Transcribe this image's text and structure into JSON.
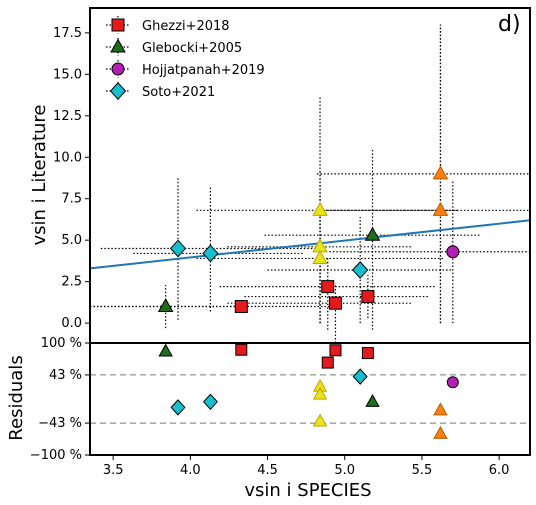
{
  "chart_data": [
    {
      "type": "scatter",
      "panel_label": "d)",
      "xlabel": "vsin i SPECIES",
      "ylabel": "vsin i Literature",
      "xlim": [
        3.35,
        6.2
      ],
      "ylim": [
        -1.2,
        19.0
      ],
      "x_ticks": [
        "3.5",
        "4.0",
        "4.5",
        "5.0",
        "5.5",
        "6.0"
      ],
      "y_ticks": [
        "0.0",
        "2.5",
        "5.0",
        "7.5",
        "10.0",
        "12.5",
        "15.0",
        "17.5"
      ],
      "legend_position": "top-left",
      "series": [
        {
          "name": "Ghezzi+2018",
          "marker": "square",
          "color": "#e41a1c",
          "points": [
            {
              "x": 4.33,
              "y": 1.0,
              "xerr": [
                1.0,
                0.6
              ],
              "yerr": [
                0.0,
                0.0
              ]
            },
            {
              "x": 4.89,
              "y": 2.2,
              "xerr": [
                0.7,
                0.7
              ],
              "yerr": [
                2.6,
                1.7
              ]
            },
            {
              "x": 4.94,
              "y": 1.2,
              "xerr": [
                0.7,
                0.5
              ],
              "yerr": [
                2.8,
                1.2
              ]
            },
            {
              "x": 5.15,
              "y": 1.6,
              "xerr": [
                0.8,
                0.4
              ],
              "yerr": [
                1.3,
                1.3
              ]
            }
          ]
        },
        {
          "name": "Glebocki+2005",
          "marker": "triangle",
          "color": "#1b6e1b",
          "points": [
            {
              "x": 3.84,
              "y": 1.0,
              "xerr": [
                0.6,
                0.5
              ],
              "yerr": [
                1.3,
                1.3
              ]
            },
            {
              "x": 5.18,
              "y": 5.3,
              "xerr": [
                0.7,
                0.7
              ],
              "yerr": [
                5.7,
                5.2
              ]
            }
          ]
        },
        {
          "name": "Hojjatpanah+2019",
          "marker": "circle",
          "color": "#b21fb2",
          "points": [
            {
              "x": 5.7,
              "y": 4.3,
              "xerr": [
                0.8,
                0.7
              ],
              "yerr": [
                4.3,
                4.3
              ]
            }
          ]
        },
        {
          "name": "Soto+2021",
          "marker": "diamond",
          "color": "#17becf",
          "points": [
            {
              "x": 3.92,
              "y": 4.5,
              "xerr": [
                0.5,
                0.9
              ],
              "yerr": [
                4.3,
                4.3
              ]
            },
            {
              "x": 4.13,
              "y": 4.2,
              "xerr": [
                0.5,
                0.6
              ],
              "yerr": [
                3.5,
                4.1
              ]
            },
            {
              "x": 5.1,
              "y": 3.2,
              "xerr": [
                0.6,
                0.6
              ],
              "yerr": [
                3.2,
                3.2
              ]
            }
          ]
        },
        {
          "name": "",
          "marker": "triangle",
          "color": "#e5e51a",
          "edge": "#c8a000",
          "points": [
            {
              "x": 4.84,
              "y": 6.8,
              "xerr": [
                0.8,
                0.9
              ],
              "yerr": [
                6.8,
                6.8
              ]
            },
            {
              "x": 4.84,
              "y": 4.6,
              "xerr": [
                0.6,
                0.6
              ],
              "yerr": [
                4.6,
                4.6
              ]
            },
            {
              "x": 4.84,
              "y": 3.9,
              "xerr": [
                0.8,
                0.8
              ],
              "yerr": [
                3.9,
                3.9
              ]
            }
          ]
        },
        {
          "name": "",
          "marker": "triangle",
          "color": "#ff7f0e",
          "edge": "#b35a00",
          "points": [
            {
              "x": 5.62,
              "y": 9.0,
              "xerr": [
                0.8,
                0.8
              ],
              "yerr": [
                9.0,
                9.0
              ]
            },
            {
              "x": 5.62,
              "y": 6.8,
              "xerr": [
                0.8,
                0.8
              ],
              "yerr": [
                6.8,
                11.2
              ]
            }
          ]
        }
      ],
      "fit_line": {
        "x": [
          3.35,
          6.2
        ],
        "y": [
          3.3,
          6.2
        ],
        "color": "#1f77b4"
      }
    },
    {
      "type": "scatter",
      "xlabel": "vsin i SPECIES",
      "ylabel": "Residuals",
      "xlim": [
        3.35,
        6.2
      ],
      "ylim": [
        -100,
        100
      ],
      "y_ticks": [
        "100 %",
        "43 %",
        "−43 %",
        "−100 %"
      ],
      "reference_lines": [
        43,
        -43
      ],
      "points": [
        {
          "x": 3.84,
          "y": 85,
          "marker": "triangle",
          "color": "#1b6e1b"
        },
        {
          "x": 4.33,
          "y": 88,
          "marker": "square",
          "color": "#e41a1c"
        },
        {
          "x": 4.89,
          "y": 65,
          "marker": "square",
          "color": "#e41a1c"
        },
        {
          "x": 4.94,
          "y": 87,
          "marker": "square",
          "color": "#e41a1c"
        },
        {
          "x": 5.15,
          "y": 82,
          "marker": "square",
          "color": "#e41a1c"
        },
        {
          "x": 3.92,
          "y": -15,
          "marker": "diamond",
          "color": "#17becf"
        },
        {
          "x": 4.13,
          "y": -5,
          "marker": "diamond",
          "color": "#17becf"
        },
        {
          "x": 5.1,
          "y": 40,
          "marker": "diamond",
          "color": "#17becf"
        },
        {
          "x": 5.7,
          "y": 30,
          "marker": "circle",
          "color": "#b21fb2"
        },
        {
          "x": 5.18,
          "y": -5,
          "marker": "triangle",
          "color": "#1b6e1b"
        },
        {
          "x": 4.84,
          "y": 22,
          "marker": "triangle",
          "color": "#e5e51a"
        },
        {
          "x": 4.84,
          "y": 8,
          "marker": "triangle",
          "color": "#e5e51a"
        },
        {
          "x": 4.84,
          "y": -40,
          "marker": "triangle",
          "color": "#e5e51a"
        },
        {
          "x": 5.62,
          "y": -20,
          "marker": "triangle",
          "color": "#ff7f0e"
        },
        {
          "x": 5.62,
          "y": -62,
          "marker": "triangle",
          "color": "#ff7f0e"
        }
      ]
    }
  ]
}
